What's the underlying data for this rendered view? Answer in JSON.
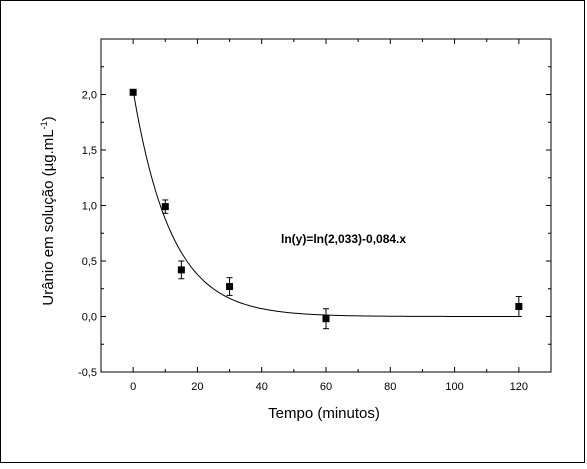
{
  "chart_data": {
    "type": "scatter",
    "xlabel": "Tempo (minutos)",
    "ylabel": "Urânio em solução (µg.mL",
    "ylabel_sup": "-1",
    "ylabel_close": ")",
    "xlim": [
      -10,
      130
    ],
    "ylim": [
      -0.5,
      2.5
    ],
    "x_ticks": [
      0,
      20,
      40,
      60,
      80,
      100,
      120
    ],
    "x_tick_labels": [
      "0",
      "20",
      "40",
      "60",
      "80",
      "100",
      "120"
    ],
    "y_ticks": [
      -0.5,
      0.0,
      0.5,
      1.0,
      1.5,
      2.0
    ],
    "y_tick_labels": [
      "-0,5",
      "0,0",
      "0,5",
      "1,0",
      "1,5",
      "2,0"
    ],
    "grid": false,
    "points": [
      {
        "x": 0,
        "y": 2.02,
        "err": 0.0
      },
      {
        "x": 10,
        "y": 0.99,
        "err": 0.06
      },
      {
        "x": 15,
        "y": 0.42,
        "err": 0.08
      },
      {
        "x": 30,
        "y": 0.27,
        "err": 0.08
      },
      {
        "x": 60,
        "y": -0.02,
        "err": 0.09
      },
      {
        "x": 120,
        "y": 0.09,
        "err": 0.09
      }
    ],
    "fit": {
      "model": "exponential",
      "a": 2.033,
      "k": 0.084,
      "equation": "ln(y)=ln(2,033)-0,084.x"
    }
  }
}
